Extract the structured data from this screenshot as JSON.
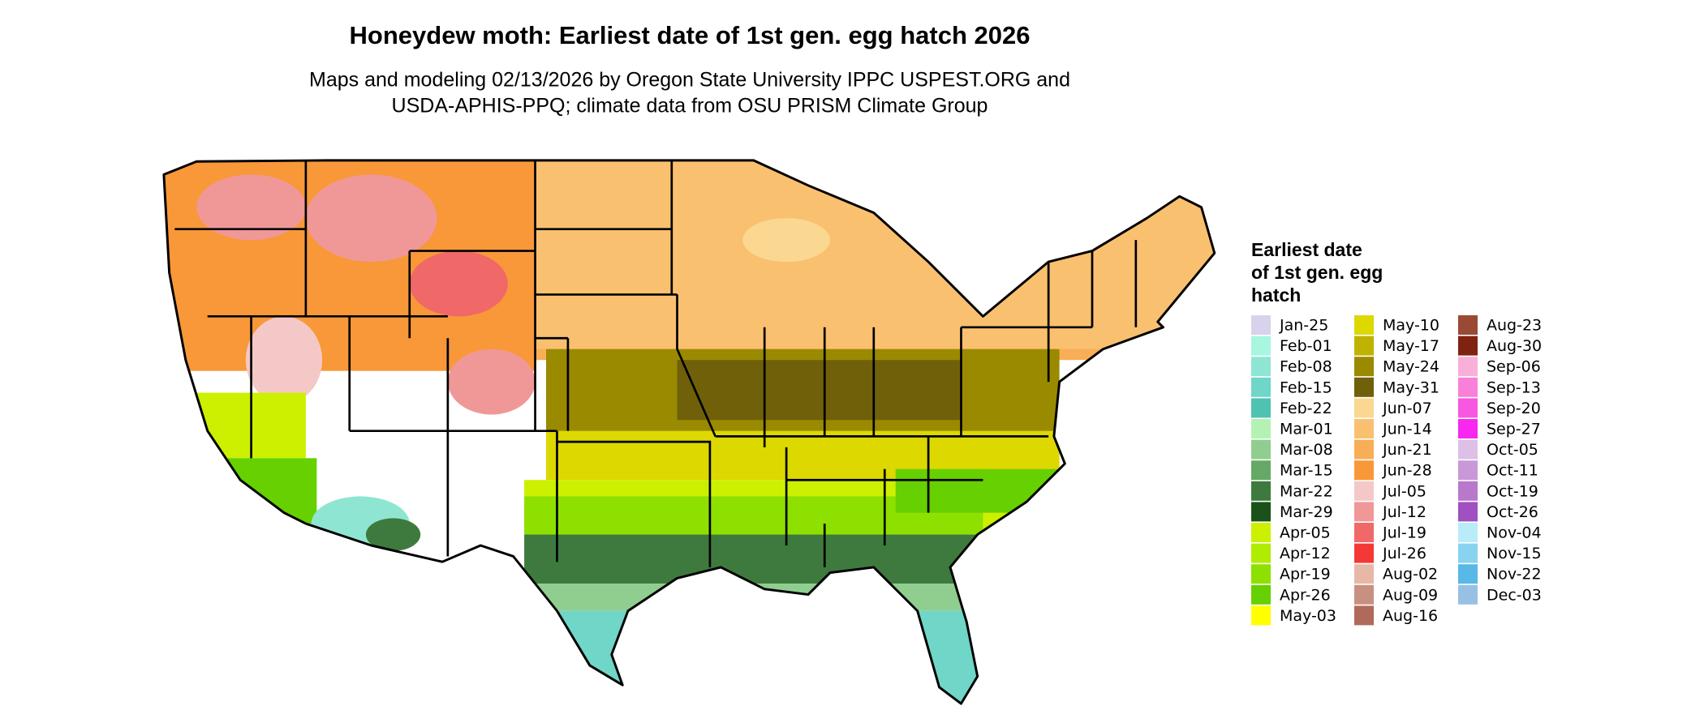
{
  "title": "Honeydew moth: Earliest date of 1st gen. egg hatch 2026",
  "subtitle_lines": [
    "Maps and modeling 02/13/2026 by Oregon State University IPPC USPEST.ORG and",
    "USDA-APHIS-PPQ; climate data from OSU PRISM Climate Group"
  ],
  "legend": {
    "title_lines": [
      "Earliest date",
      "of 1st gen. egg",
      "hatch"
    ],
    "items": [
      {
        "label": "Jan-25",
        "color": "#d9d2ec"
      },
      {
        "label": "Feb-01",
        "color": "#a8f5e0"
      },
      {
        "label": "Feb-08",
        "color": "#8ee6d2"
      },
      {
        "label": "Feb-15",
        "color": "#6fd6c8"
      },
      {
        "label": "Feb-22",
        "color": "#50c2b2"
      },
      {
        "label": "Mar-01",
        "color": "#b4f2b4"
      },
      {
        "label": "Mar-08",
        "color": "#8fce8f"
      },
      {
        "label": "Mar-15",
        "color": "#66a866"
      },
      {
        "label": "Mar-22",
        "color": "#3e7a3e"
      },
      {
        "label": "Mar-29",
        "color": "#1a521a"
      },
      {
        "label": "Apr-05",
        "color": "#ccf000"
      },
      {
        "label": "Apr-12",
        "color": "#b0ec00"
      },
      {
        "label": "Apr-19",
        "color": "#8ee000"
      },
      {
        "label": "Apr-26",
        "color": "#66d000"
      },
      {
        "label": "May-03",
        "color": "#ffff00"
      },
      {
        "label": "May-10",
        "color": "#ddd800"
      },
      {
        "label": "May-17",
        "color": "#c0b200"
      },
      {
        "label": "May-24",
        "color": "#9a8a00"
      },
      {
        "label": "May-31",
        "color": "#70600a"
      },
      {
        "label": "Jun-07",
        "color": "#fbd892"
      },
      {
        "label": "Jun-14",
        "color": "#f9c070"
      },
      {
        "label": "Jun-21",
        "color": "#f8ae56"
      },
      {
        "label": "Jun-28",
        "color": "#f89838"
      },
      {
        "label": "Jul-05",
        "color": "#f5c8c8"
      },
      {
        "label": "Jul-12",
        "color": "#f09898"
      },
      {
        "label": "Jul-19",
        "color": "#f06868"
      },
      {
        "label": "Jul-26",
        "color": "#f43838"
      },
      {
        "label": "Aug-02",
        "color": "#e6b8a8"
      },
      {
        "label": "Aug-09",
        "color": "#c89080"
      },
      {
        "label": "Aug-16",
        "color": "#b06a5c"
      },
      {
        "label": "Aug-23",
        "color": "#9a4a34"
      },
      {
        "label": "Aug-30",
        "color": "#802210"
      },
      {
        "label": "Sep-06",
        "color": "#f8b0d8"
      },
      {
        "label": "Sep-13",
        "color": "#f880d8"
      },
      {
        "label": "Sep-20",
        "color": "#f858e0"
      },
      {
        "label": "Sep-27",
        "color": "#f828f0"
      },
      {
        "label": "Oct-05",
        "color": "#dcc0e6"
      },
      {
        "label": "Oct-11",
        "color": "#c898d8"
      },
      {
        "label": "Oct-19",
        "color": "#b878cc"
      },
      {
        "label": "Oct-26",
        "color": "#a050c0"
      },
      {
        "label": "Nov-04",
        "color": "#b8ecf8"
      },
      {
        "label": "Nov-15",
        "color": "#88d4f0"
      },
      {
        "label": "Nov-22",
        "color": "#58b8e6"
      },
      {
        "label": "Dec-03",
        "color": "#98c0e4"
      }
    ]
  }
}
